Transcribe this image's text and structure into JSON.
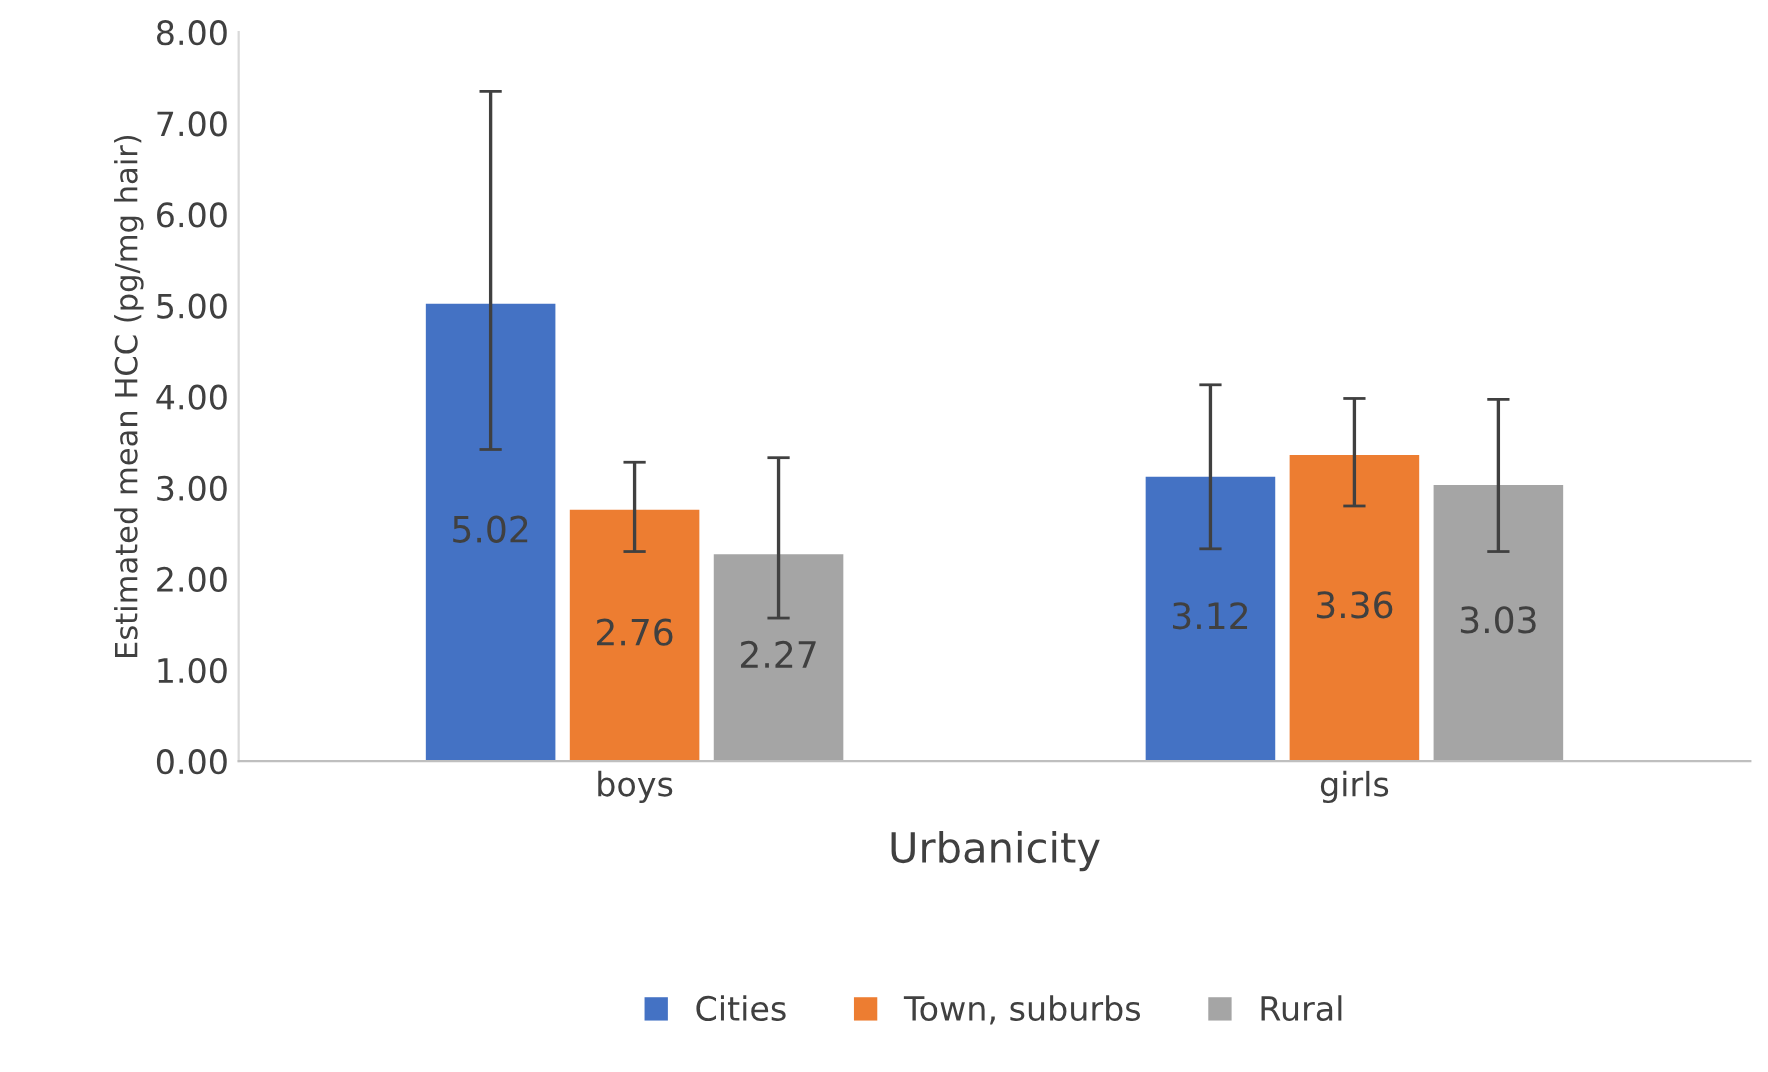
{
  "chart_data": {
    "type": "bar",
    "xlabel": "Urbanicity",
    "ylabel": "Estimated mean HCC (pg/mg hair)",
    "categories": [
      "boys",
      "girls"
    ],
    "series": [
      {
        "name": "Cities",
        "color": "#4472c4",
        "values": [
          5.02,
          3.12
        ],
        "errors": [
          [
            3.42,
            7.35
          ],
          [
            2.33,
            4.13
          ]
        ]
      },
      {
        "name": "Town, suburbs",
        "color": "#ed7d31",
        "values": [
          2.76,
          3.36
        ],
        "errors": [
          [
            2.3,
            3.28
          ],
          [
            2.8,
            3.98
          ]
        ]
      },
      {
        "name": "Rural",
        "color": "#a5a5a5",
        "values": [
          2.27,
          3.03
        ],
        "errors": [
          [
            1.57,
            3.33
          ],
          [
            2.3,
            3.97
          ]
        ]
      }
    ],
    "ylim": [
      0,
      8
    ],
    "yticks": [
      {
        "value": 0,
        "label": "0.00"
      },
      {
        "value": 1,
        "label": "1.00"
      },
      {
        "value": 2,
        "label": "2.00"
      },
      {
        "value": 3,
        "label": "3.00"
      },
      {
        "value": 4,
        "label": "4.00"
      },
      {
        "value": 5,
        "label": "5.00"
      },
      {
        "value": 6,
        "label": "6.00"
      },
      {
        "value": 7,
        "label": "7.00"
      },
      {
        "value": 8,
        "label": "8.00"
      }
    ],
    "data_labels": true,
    "legend": "bottom",
    "grid": false
  }
}
